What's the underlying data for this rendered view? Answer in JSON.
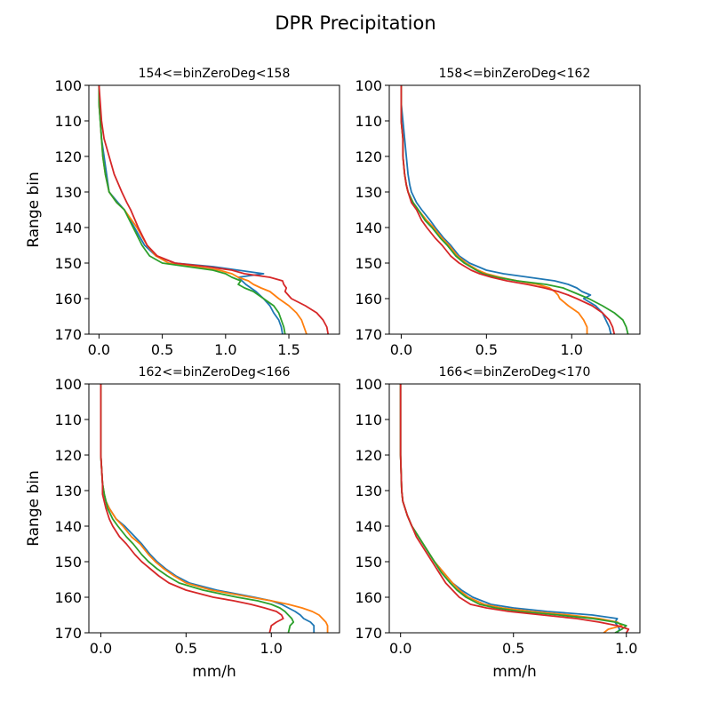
{
  "figure": {
    "title": "DPR Precipitation"
  },
  "colors": [
    "#1f77b4",
    "#ff7f0e",
    "#2ca02c",
    "#d62728"
  ],
  "chart_data": [
    {
      "type": "line",
      "title": "154<=binZeroDeg<158",
      "xlabel": "",
      "ylabel": "Range bin",
      "xlim": [
        -0.08,
        1.9
      ],
      "ylim": [
        170,
        100
      ],
      "xticks": [
        0.0,
        0.5,
        1.0,
        1.5
      ],
      "xtick_labels": [
        "0.0",
        "0.5",
        "1.0",
        "1.5"
      ],
      "yticks": [
        100,
        110,
        120,
        130,
        140,
        150,
        160,
        170
      ],
      "ytick_labels": [
        "100",
        "110",
        "120",
        "130",
        "140",
        "150",
        "160",
        "170"
      ],
      "y": [
        100,
        105,
        110,
        115,
        120,
        125,
        130,
        133,
        135,
        140,
        145,
        148,
        150,
        151,
        152,
        153,
        154,
        155,
        156,
        157,
        158,
        160,
        162,
        164,
        166,
        168,
        170
      ],
      "series": [
        {
          "values": [
            0.0,
            0.0,
            0.01,
            0.02,
            0.04,
            0.06,
            0.08,
            0.15,
            0.2,
            0.28,
            0.36,
            0.45,
            0.6,
            0.9,
            1.1,
            1.3,
            1.1,
            1.13,
            1.16,
            1.2,
            1.24,
            1.3,
            1.35,
            1.38,
            1.42,
            1.44,
            1.45
          ]
        },
        {
          "values": [
            0.0,
            0.0,
            0.01,
            0.02,
            0.03,
            0.05,
            0.08,
            0.14,
            0.2,
            0.3,
            0.38,
            0.45,
            0.55,
            0.75,
            0.95,
            1.05,
            1.1,
            1.18,
            1.22,
            1.28,
            1.35,
            1.42,
            1.5,
            1.56,
            1.6,
            1.62,
            1.64
          ]
        },
        {
          "values": [
            0.0,
            0.0,
            0.01,
            0.02,
            0.03,
            0.05,
            0.08,
            0.14,
            0.2,
            0.27,
            0.34,
            0.4,
            0.5,
            0.7,
            0.9,
            1.0,
            1.05,
            1.12,
            1.1,
            1.15,
            1.22,
            1.3,
            1.38,
            1.42,
            1.44,
            1.46,
            1.47
          ]
        },
        {
          "values": [
            0.0,
            0.01,
            0.02,
            0.04,
            0.08,
            0.12,
            0.18,
            0.22,
            0.25,
            0.31,
            0.38,
            0.46,
            0.6,
            0.85,
            1.05,
            1.15,
            1.35,
            1.45,
            1.46,
            1.48,
            1.47,
            1.52,
            1.63,
            1.72,
            1.77,
            1.8,
            1.81
          ]
        }
      ]
    },
    {
      "type": "line",
      "title": "158<=binZeroDeg<162",
      "xlabel": "",
      "ylabel": "",
      "xlim": [
        -0.07,
        1.4
      ],
      "ylim": [
        170,
        100
      ],
      "xticks": [
        0.0,
        0.5,
        1.0
      ],
      "xtick_labels": [
        "0.0",
        "0.5",
        "1.0"
      ],
      "yticks": [
        100,
        110,
        120,
        130,
        140,
        150,
        160,
        170
      ],
      "ytick_labels": [
        "100",
        "110",
        "120",
        "130",
        "140",
        "150",
        "160",
        "170"
      ],
      "y": [
        100,
        105,
        110,
        115,
        120,
        125,
        128,
        130,
        133,
        135,
        138,
        140,
        143,
        145,
        148,
        150,
        152,
        153,
        154,
        155,
        156,
        157,
        158,
        159,
        160,
        162,
        164,
        166,
        168,
        170
      ],
      "series": [
        {
          "values": [
            0.0,
            0.0,
            0.01,
            0.02,
            0.03,
            0.04,
            0.05,
            0.06,
            0.09,
            0.12,
            0.17,
            0.2,
            0.25,
            0.29,
            0.34,
            0.4,
            0.5,
            0.6,
            0.75,
            0.9,
            0.98,
            1.03,
            1.06,
            1.11,
            1.07,
            1.14,
            1.18,
            1.2,
            1.22,
            1.23
          ]
        },
        {
          "values": [
            0.0,
            0.0,
            0.0,
            0.01,
            0.01,
            0.02,
            0.03,
            0.04,
            0.07,
            0.1,
            0.15,
            0.19,
            0.24,
            0.28,
            0.33,
            0.38,
            0.45,
            0.5,
            0.58,
            0.68,
            0.8,
            0.87,
            0.9,
            0.92,
            0.93,
            0.98,
            1.04,
            1.07,
            1.09,
            1.09
          ]
        },
        {
          "values": [
            0.0,
            0.0,
            0.0,
            0.01,
            0.01,
            0.02,
            0.03,
            0.04,
            0.07,
            0.1,
            0.14,
            0.18,
            0.23,
            0.27,
            0.32,
            0.37,
            0.44,
            0.48,
            0.56,
            0.68,
            0.85,
            0.95,
            1.0,
            1.05,
            1.1,
            1.18,
            1.25,
            1.3,
            1.32,
            1.33
          ]
        },
        {
          "values": [
            0.0,
            0.0,
            0.0,
            0.01,
            0.01,
            0.02,
            0.03,
            0.04,
            0.06,
            0.09,
            0.12,
            0.15,
            0.2,
            0.24,
            0.29,
            0.34,
            0.41,
            0.46,
            0.53,
            0.62,
            0.74,
            0.84,
            0.92,
            0.98,
            1.03,
            1.12,
            1.18,
            1.22,
            1.24,
            1.25
          ]
        }
      ]
    },
    {
      "type": "line",
      "title": "162<=binZeroDeg<166",
      "xlabel": "mm/h",
      "ylabel": "Range bin",
      "xlim": [
        -0.07,
        1.4
      ],
      "ylim": [
        170,
        100
      ],
      "xticks": [
        0.0,
        0.5,
        1.0
      ],
      "xtick_labels": [
        "0.0",
        "0.5",
        "1.0"
      ],
      "yticks": [
        100,
        110,
        120,
        130,
        140,
        150,
        160,
        170
      ],
      "ytick_labels": [
        "100",
        "110",
        "120",
        "130",
        "140",
        "150",
        "160",
        "170"
      ],
      "y": [
        100,
        110,
        120,
        128,
        131,
        133,
        135,
        138,
        140,
        143,
        145,
        148,
        150,
        152,
        154,
        156,
        158,
        160,
        161,
        162,
        163,
        164,
        165,
        166,
        167,
        168,
        170
      ],
      "series": [
        {
          "values": [
            0.0,
            0.0,
            0.0,
            0.01,
            0.02,
            0.03,
            0.05,
            0.09,
            0.14,
            0.2,
            0.24,
            0.29,
            0.33,
            0.38,
            0.44,
            0.52,
            0.68,
            0.9,
            1.0,
            1.06,
            1.1,
            1.14,
            1.17,
            1.19,
            1.23,
            1.25,
            1.25
          ]
        },
        {
          "values": [
            0.0,
            0.0,
            0.0,
            0.01,
            0.02,
            0.03,
            0.05,
            0.09,
            0.13,
            0.18,
            0.23,
            0.28,
            0.32,
            0.37,
            0.43,
            0.5,
            0.65,
            0.88,
            1.0,
            1.1,
            1.18,
            1.24,
            1.28,
            1.3,
            1.32,
            1.33,
            1.33
          ]
        },
        {
          "values": [
            0.0,
            0.0,
            0.0,
            0.01,
            0.02,
            0.03,
            0.04,
            0.07,
            0.1,
            0.15,
            0.19,
            0.24,
            0.28,
            0.33,
            0.39,
            0.46,
            0.6,
            0.8,
            0.92,
            1.0,
            1.05,
            1.08,
            1.1,
            1.12,
            1.13,
            1.11,
            1.1
          ]
        },
        {
          "values": [
            0.0,
            0.0,
            0.0,
            0.01,
            0.01,
            0.02,
            0.03,
            0.05,
            0.07,
            0.11,
            0.15,
            0.2,
            0.24,
            0.29,
            0.34,
            0.4,
            0.5,
            0.66,
            0.78,
            0.88,
            0.96,
            1.03,
            1.06,
            1.07,
            1.03,
            1.0,
            0.99
          ]
        }
      ]
    },
    {
      "type": "line",
      "title": "166<=binZeroDeg<170",
      "xlabel": "mm/h",
      "ylabel": "",
      "xlim": [
        -0.05,
        1.06
      ],
      "ylim": [
        170,
        100
      ],
      "xticks": [
        0.0,
        0.5,
        1.0
      ],
      "xtick_labels": [
        "0.0",
        "0.5",
        "1.0"
      ],
      "yticks": [
        100,
        110,
        120,
        130,
        140,
        150,
        160,
        170
      ],
      "ytick_labels": [
        "100",
        "110",
        "120",
        "130",
        "140",
        "150",
        "160",
        "170"
      ],
      "y": [
        100,
        110,
        120,
        130,
        133,
        135,
        137,
        140,
        143,
        146,
        150,
        153,
        156,
        158,
        160,
        162,
        163,
        164,
        165,
        166,
        167,
        168,
        169,
        170
      ],
      "series": [
        {
          "values": [
            0.0,
            0.0,
            0.0,
            0.005,
            0.01,
            0.02,
            0.03,
            0.05,
            0.08,
            0.11,
            0.15,
            0.19,
            0.23,
            0.27,
            0.32,
            0.4,
            0.5,
            0.65,
            0.85,
            0.96,
            0.95,
            0.96,
            0.97,
            0.96
          ]
        },
        {
          "values": [
            0.0,
            0.0,
            0.0,
            0.005,
            0.01,
            0.02,
            0.03,
            0.05,
            0.08,
            0.11,
            0.15,
            0.19,
            0.23,
            0.26,
            0.3,
            0.37,
            0.45,
            0.58,
            0.75,
            0.88,
            0.96,
            0.98,
            0.92,
            0.9
          ]
        },
        {
          "values": [
            0.0,
            0.0,
            0.0,
            0.005,
            0.01,
            0.02,
            0.03,
            0.05,
            0.08,
            0.11,
            0.15,
            0.18,
            0.22,
            0.25,
            0.29,
            0.35,
            0.42,
            0.53,
            0.7,
            0.85,
            0.95,
            1.0,
            0.98,
            0.95
          ]
        },
        {
          "values": [
            0.0,
            0.0,
            0.0,
            0.005,
            0.01,
            0.02,
            0.03,
            0.05,
            0.07,
            0.1,
            0.14,
            0.17,
            0.2,
            0.23,
            0.26,
            0.31,
            0.38,
            0.48,
            0.63,
            0.78,
            0.88,
            0.96,
            1.01,
            1.0
          ]
        }
      ]
    }
  ]
}
